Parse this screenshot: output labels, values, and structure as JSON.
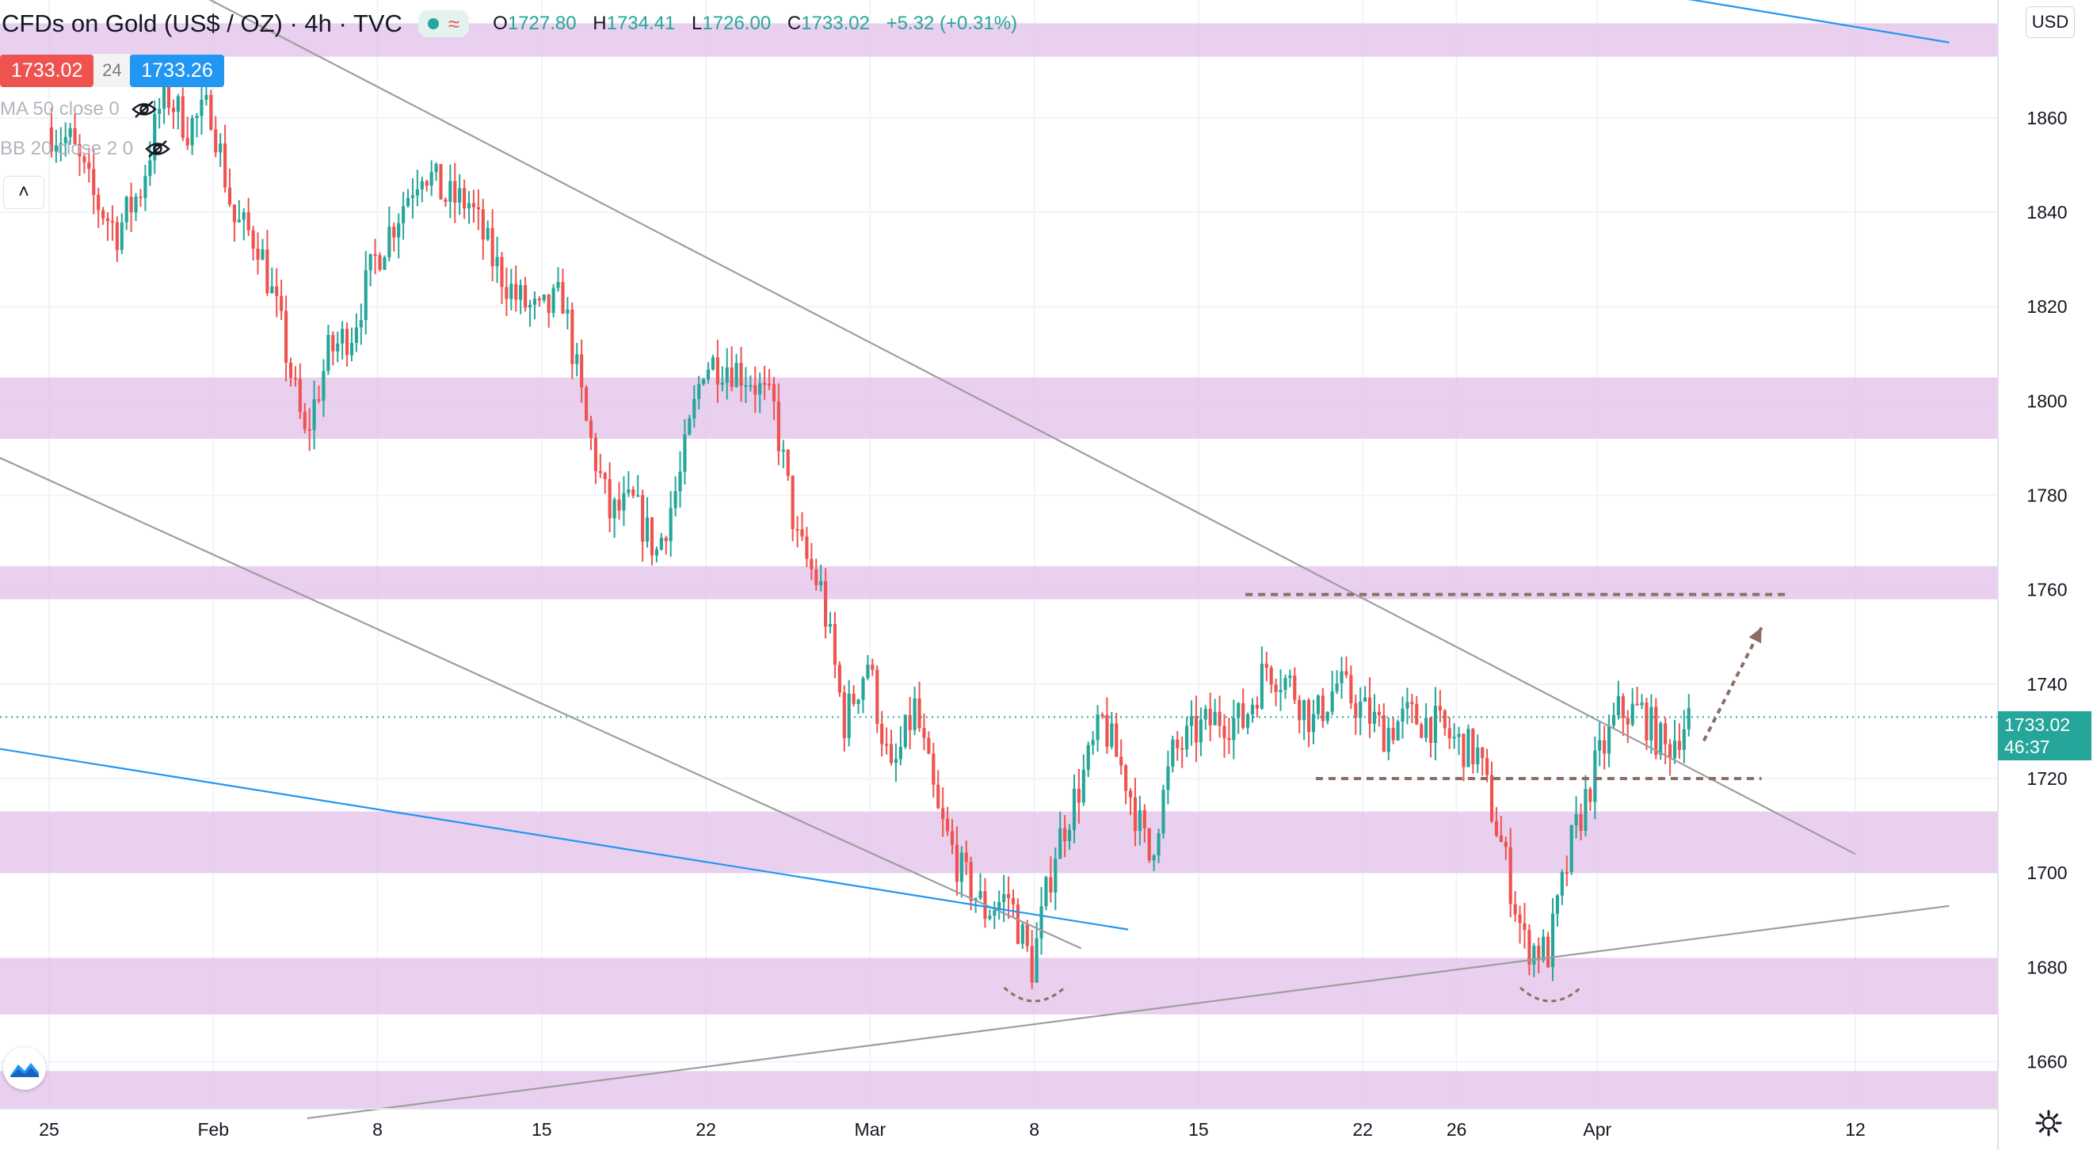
{
  "header": {
    "title": "CFDs on Gold (US$ / OZ) · 4h · TVC",
    "ohlc": [
      {
        "key": "O",
        "value": "1727.80"
      },
      {
        "key": "H",
        "value": "1734.41"
      },
      {
        "key": "L",
        "value": "1726.00"
      },
      {
        "key": "C",
        "value": "1733.02"
      }
    ],
    "change": "+5.32 (+0.31%)"
  },
  "prices": {
    "bid": "1733.02",
    "spread": "24",
    "ask": "1733.26"
  },
  "indicators": [
    {
      "label": "MA 50 close 0",
      "icon": "eye-off-icon"
    },
    {
      "label": "BB 20 close 2 0",
      "icon": "eye-off-icon"
    }
  ],
  "axis": {
    "currency": "USD",
    "last_price": "1733.02",
    "countdown": "46:37"
  },
  "colors": {
    "up": "#26a69a",
    "down": "#ef5350",
    "zone": "#e1bee7",
    "trendline": "#9e9e9e",
    "channel": "#2196f3",
    "annotation": "#8d6e63"
  },
  "chart_data": {
    "type": "candlestick",
    "instrument": "CFDs on Gold (US$ / OZ)",
    "timeframe": "4h",
    "ylim": [
      1650,
      1885
    ],
    "y_ticks": [
      1660,
      1680,
      1700,
      1720,
      1740,
      1760,
      1780,
      1800,
      1820,
      1840,
      1860,
      1880
    ],
    "x_tick_labels": [
      "25",
      "Feb",
      "8",
      "15",
      "22",
      "Mar",
      "8",
      "15",
      "22",
      "26",
      "Apr",
      "12"
    ],
    "grid": true,
    "price_path": [
      {
        "date": "Jan 25",
        "price": 1858
      },
      {
        "date": "Jan 26",
        "price": 1855
      },
      {
        "date": "Jan 27",
        "price": 1843
      },
      {
        "date": "Jan 28",
        "price": 1836
      },
      {
        "date": "Jan 29",
        "price": 1845
      },
      {
        "date": "Jan 30",
        "price": 1866
      },
      {
        "date": "Jan 31",
        "price": 1858
      },
      {
        "date": "Feb 1",
        "price": 1862
      },
      {
        "date": "Feb 2",
        "price": 1838
      },
      {
        "date": "Feb 3",
        "price": 1834
      },
      {
        "date": "Feb 4",
        "price": 1815
      },
      {
        "date": "Feb 5",
        "price": 1792
      },
      {
        "date": "Feb 6",
        "price": 1810
      },
      {
        "date": "Feb 7",
        "price": 1815
      },
      {
        "date": "Feb 8",
        "price": 1830
      },
      {
        "date": "Feb 9",
        "price": 1840
      },
      {
        "date": "Feb 10",
        "price": 1850
      },
      {
        "date": "Feb 11",
        "price": 1843
      },
      {
        "date": "Feb 12",
        "price": 1842
      },
      {
        "date": "Feb 13",
        "price": 1830
      },
      {
        "date": "Feb 14",
        "price": 1822
      },
      {
        "date": "Feb 15",
        "price": 1818
      },
      {
        "date": "Feb 16",
        "price": 1822
      },
      {
        "date": "Feb 17",
        "price": 1795
      },
      {
        "date": "Feb 18",
        "price": 1776
      },
      {
        "date": "Feb 19",
        "price": 1778
      },
      {
        "date": "Feb 20",
        "price": 1768
      },
      {
        "date": "Feb 21",
        "price": 1784
      },
      {
        "date": "Feb 22",
        "price": 1808
      },
      {
        "date": "Feb 23",
        "price": 1808
      },
      {
        "date": "Feb 24",
        "price": 1805
      },
      {
        "date": "Feb 25",
        "price": 1798
      },
      {
        "date": "Feb 26",
        "price": 1770
      },
      {
        "date": "Feb 27",
        "price": 1760
      },
      {
        "date": "Feb 28",
        "price": 1732
      },
      {
        "date": "Mar 1",
        "price": 1745
      },
      {
        "date": "Mar 2",
        "price": 1720
      },
      {
        "date": "Mar 3",
        "price": 1735
      },
      {
        "date": "Mar 4",
        "price": 1712
      },
      {
        "date": "Mar 5",
        "price": 1700
      },
      {
        "date": "Mar 6",
        "price": 1692
      },
      {
        "date": "Mar 7",
        "price": 1695
      },
      {
        "date": "Mar 8",
        "price": 1680
      },
      {
        "date": "Mar 9",
        "price": 1705
      },
      {
        "date": "Mar 10",
        "price": 1718
      },
      {
        "date": "Mar 11",
        "price": 1732
      },
      {
        "date": "Mar 12",
        "price": 1720
      },
      {
        "date": "Mar 13",
        "price": 1703
      },
      {
        "date": "Mar 14",
        "price": 1725
      },
      {
        "date": "Mar 15",
        "price": 1730
      },
      {
        "date": "Mar 16",
        "price": 1733
      },
      {
        "date": "Mar 17",
        "price": 1732
      },
      {
        "date": "Mar 18",
        "price": 1744
      },
      {
        "date": "Mar 19",
        "price": 1740
      },
      {
        "date": "Mar 20",
        "price": 1732
      },
      {
        "date": "Mar 21",
        "price": 1740
      },
      {
        "date": "Mar 22",
        "price": 1735
      },
      {
        "date": "Mar 23",
        "price": 1730
      },
      {
        "date": "Mar 24",
        "price": 1733
      },
      {
        "date": "Mar 25",
        "price": 1732
      },
      {
        "date": "Mar 26",
        "price": 1728
      },
      {
        "date": "Mar 27",
        "price": 1725
      },
      {
        "date": "Mar 28",
        "price": 1706
      },
      {
        "date": "Mar 29",
        "price": 1685
      },
      {
        "date": "Mar 30",
        "price": 1683
      },
      {
        "date": "Mar 31",
        "price": 1706
      },
      {
        "date": "Apr 1",
        "price": 1722
      },
      {
        "date": "Apr 2",
        "price": 1734
      },
      {
        "date": "Apr 3",
        "price": 1734
      },
      {
        "date": "Apr 4",
        "price": 1726
      },
      {
        "date": "Apr 5",
        "price": 1733
      }
    ],
    "zones": [
      {
        "low": 1873,
        "high": 1880
      },
      {
        "low": 1792,
        "high": 1805
      },
      {
        "low": 1758,
        "high": 1765
      },
      {
        "low": 1700,
        "high": 1713
      },
      {
        "low": 1670,
        "high": 1682
      },
      {
        "low": 1650,
        "high": 1658
      }
    ],
    "trendlines": [
      {
        "color": "#9e9e9e",
        "from": {
          "date": "Jan 28",
          "price": 1895
        },
        "to": {
          "date": "Apr 12",
          "price": 1704
        }
      },
      {
        "color": "#9e9e9e",
        "from": {
          "date": "Jan 22",
          "price": 1790
        },
        "to": {
          "date": "Mar 10",
          "price": 1684
        }
      },
      {
        "color": "#9e9e9e",
        "from": {
          "date": "Feb 5",
          "price": 1648
        },
        "to": {
          "date": "Apr 16",
          "price": 1693
        }
      },
      {
        "color": "#2196f3",
        "from": {
          "date": "Jan 22",
          "price": 1727
        },
        "to": {
          "date": "Mar 12",
          "price": 1688
        }
      },
      {
        "color": "#2196f3",
        "from": {
          "date": "Mar 24",
          "price": 1895
        },
        "to": {
          "date": "Apr 16",
          "price": 1876
        }
      }
    ],
    "levels": [
      {
        "price": 1759,
        "from": "Mar 17",
        "to": "Apr 9",
        "style": "dashed"
      },
      {
        "price": 1720,
        "from": "Mar 20",
        "to": "Apr 8",
        "style": "dashed"
      }
    ],
    "last_price": 1733.02
  }
}
